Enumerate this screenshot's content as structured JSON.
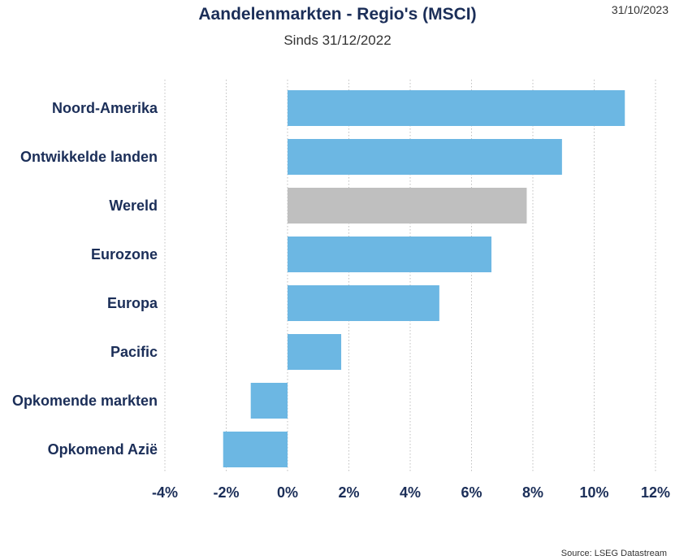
{
  "header": {
    "title": "Aandelenmarkten - Regio's (MSCI)",
    "subtitle": "Sinds 31/12/2022",
    "date": "31/10/2023"
  },
  "footer": {
    "source": "Source: LSEG Datastream"
  },
  "colors": {
    "bar": "#6cb7e3",
    "highlight": "#bfbfbf",
    "text": "#1b2e58",
    "grid": "#bfbfbf"
  },
  "chart_data": {
    "type": "bar",
    "orientation": "horizontal",
    "categories": [
      "Noord-Amerika",
      "Ontwikkelde landen",
      "Wereld",
      "Eurozone",
      "Europa",
      "Pacific",
      "Opkomende markten",
      "Opkomend Azië"
    ],
    "values": [
      11.0,
      8.95,
      7.8,
      6.65,
      4.95,
      1.75,
      -1.2,
      -2.1
    ],
    "highlight": "Wereld",
    "xlim": [
      -4,
      12
    ],
    "xticks": [
      -4,
      -2,
      0,
      2,
      4,
      6,
      8,
      10,
      12
    ],
    "xtick_labels": [
      "-4%",
      "-2%",
      "0%",
      "2%",
      "4%",
      "6%",
      "8%",
      "10%",
      "12%"
    ],
    "grid": "vertical dotted"
  }
}
